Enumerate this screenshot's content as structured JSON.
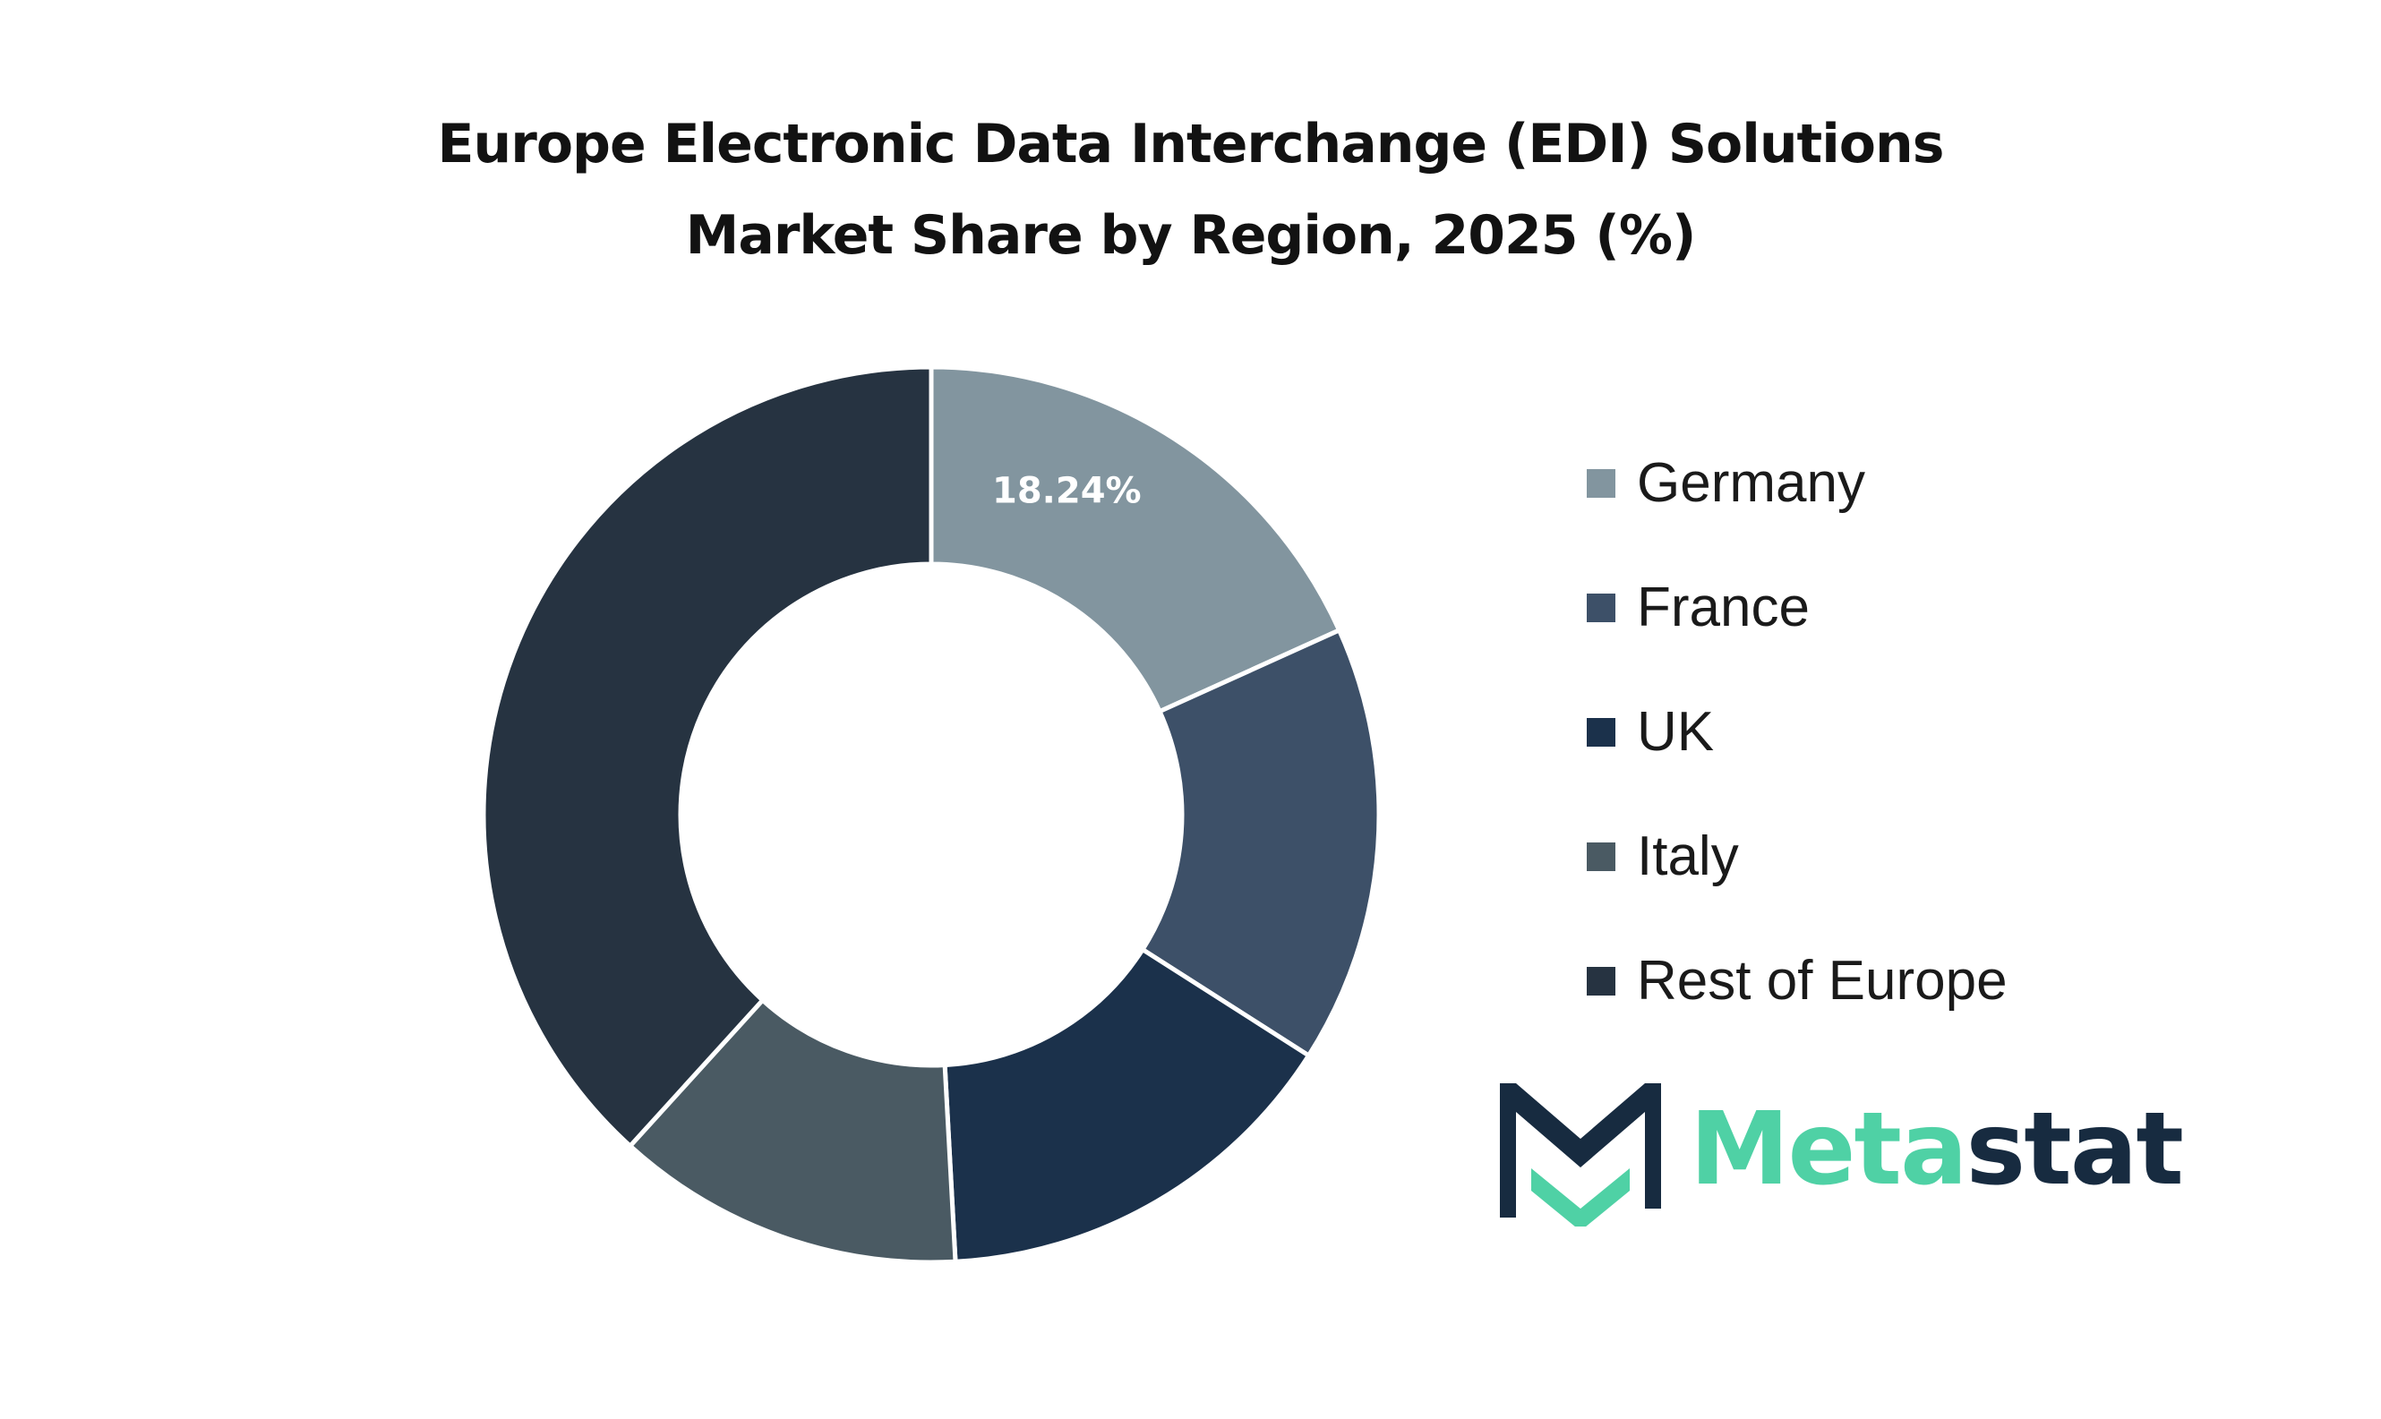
{
  "title": {
    "line1": "Europe Electronic Data Interchange (EDI) Solutions",
    "line2": "Market Share by Region, 2025 (%)"
  },
  "chart_data": {
    "type": "pie",
    "donut": true,
    "categories": [
      "Germany",
      "France",
      "UK",
      "Italy",
      "Rest of Europe"
    ],
    "values": [
      18.24,
      15.8,
      15.1,
      12.6,
      38.26
    ],
    "colors": [
      "#82959f",
      "#3d5068",
      "#1b314b",
      "#4a5a63",
      "#263341"
    ],
    "data_labels": [
      {
        "category": "Germany",
        "text": "18.24%"
      }
    ],
    "legend_position": "right"
  },
  "legend": [
    {
      "label": "Germany",
      "color": "#82959f"
    },
    {
      "label": "France",
      "color": "#3d5068"
    },
    {
      "label": "UK",
      "color": "#1b314b"
    },
    {
      "label": "Italy",
      "color": "#4a5a63"
    },
    {
      "label": "Rest of Europe",
      "color": "#263341"
    }
  ],
  "logo": {
    "text_part1": "Meta",
    "text_part2": "stat",
    "color1": "#4fd1a5",
    "color2": "#172b40"
  }
}
